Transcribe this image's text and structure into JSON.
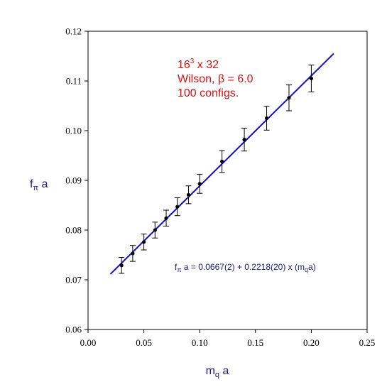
{
  "chart_data": {
    "type": "scatter",
    "title": "",
    "xlabel": {
      "main": "m",
      "sub": "q",
      "suffix": " a"
    },
    "ylabel": {
      "main": "f",
      "sub": "π",
      "suffix": " a"
    },
    "xlim": [
      0.0,
      0.25
    ],
    "ylim": [
      0.06,
      0.12
    ],
    "x_ticks": [
      "0.00",
      "0.05",
      "0.10",
      "0.15",
      "0.20",
      "0.25"
    ],
    "y_ticks": [
      "0.06",
      "0.07",
      "0.08",
      "0.09",
      "0.10",
      "0.11",
      "0.12"
    ],
    "grid": false,
    "points": [
      {
        "x": 0.03,
        "y": 0.0729,
        "err": 0.0016
      },
      {
        "x": 0.04,
        "y": 0.0753,
        "err": 0.0016
      },
      {
        "x": 0.05,
        "y": 0.0776,
        "err": 0.0016
      },
      {
        "x": 0.06,
        "y": 0.08,
        "err": 0.0016
      },
      {
        "x": 0.07,
        "y": 0.0824,
        "err": 0.0016
      },
      {
        "x": 0.08,
        "y": 0.0847,
        "err": 0.0018
      },
      {
        "x": 0.09,
        "y": 0.0871,
        "err": 0.0018
      },
      {
        "x": 0.1,
        "y": 0.0893,
        "err": 0.0019
      },
      {
        "x": 0.12,
        "y": 0.0938,
        "err": 0.0022
      },
      {
        "x": 0.14,
        "y": 0.0982,
        "err": 0.0023
      },
      {
        "x": 0.16,
        "y": 0.1025,
        "err": 0.0024
      },
      {
        "x": 0.18,
        "y": 0.1066,
        "err": 0.0026
      },
      {
        "x": 0.2,
        "y": 0.1105,
        "err": 0.0027
      }
    ],
    "fit_line": {
      "intercept": 0.0667,
      "slope": 0.2218,
      "x_range": [
        0.02,
        0.22
      ]
    },
    "annotation": {
      "line1_base": "16",
      "line1_sup": "3",
      "line1_rest": " x 32",
      "line2": "Wilson, β = 6.0",
      "line3": "100 configs."
    },
    "fit_label": {
      "main": "f",
      "sub1": "π",
      "mid": " a = 0.0667(2) + 0.2218(20) x (m",
      "sub2": "q",
      "end": "a)"
    },
    "colors": {
      "points": "#000000",
      "fit": "#1010c8",
      "annotation": "#e01010",
      "axis_label": "#1a1a7a"
    }
  }
}
